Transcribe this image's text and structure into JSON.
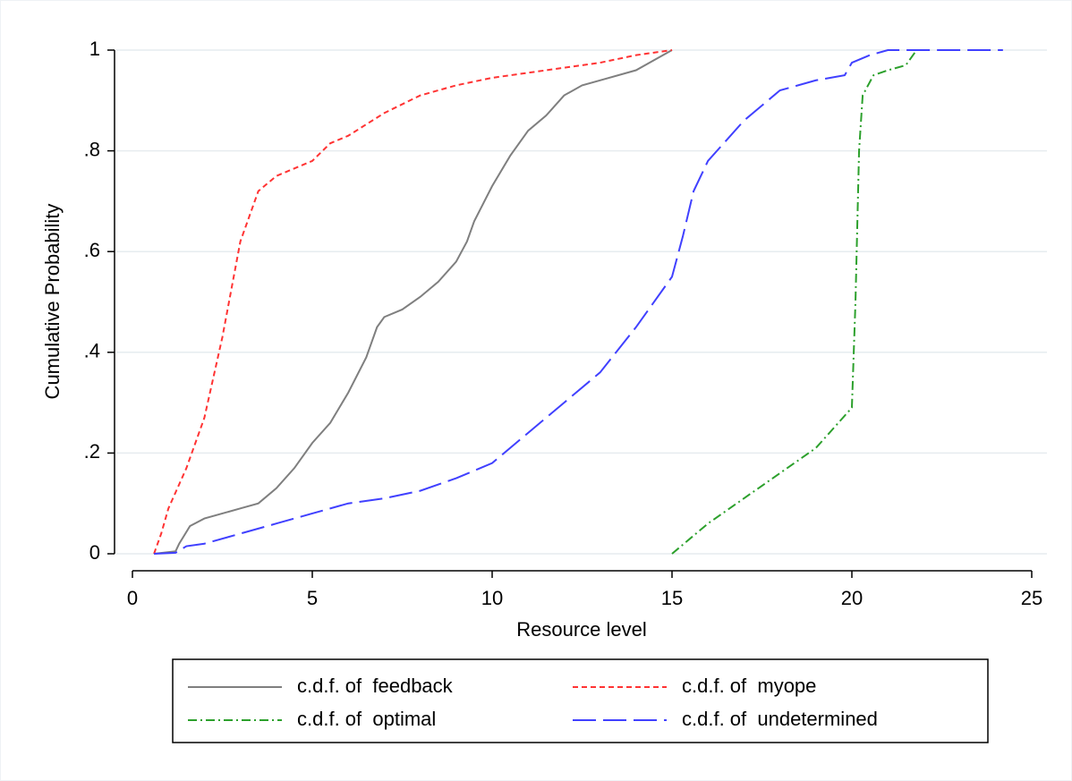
{
  "chart_data": {
    "type": "line",
    "x_label": "Resource level",
    "y_label": "Cumulative Probability",
    "xlim": [
      0,
      25
    ],
    "ylim": [
      0,
      1
    ],
    "xticks": [
      0,
      5,
      10,
      15,
      20,
      25
    ],
    "yticks": [
      0,
      {
        "value": 0.2,
        "label": ".2"
      },
      {
        "value": 0.4,
        "label": ".4"
      },
      {
        "value": 0.6,
        "label": ".6"
      },
      {
        "value": 0.8,
        "label": ".8"
      },
      1
    ],
    "grid": true,
    "legend": "bottom",
    "series": [
      {
        "name": "c.d.f. of  feedback",
        "color": "#7f7f7f",
        "dash": "solid",
        "x": [
          0.6,
          1.2,
          1.3,
          1.6,
          2,
          2.5,
          3,
          3.5,
          4,
          4.5,
          5,
          5.5,
          6,
          6.5,
          6.8,
          7,
          7.5,
          8,
          8.5,
          9,
          9.3,
          9.5,
          10,
          10.5,
          11,
          11.5,
          12,
          12.5,
          13,
          14,
          14.5,
          15
        ],
        "values": [
          0,
          0.005,
          0.02,
          0.055,
          0.07,
          0.08,
          0.09,
          0.1,
          0.13,
          0.17,
          0.22,
          0.26,
          0.32,
          0.39,
          0.45,
          0.47,
          0.485,
          0.51,
          0.54,
          0.58,
          0.62,
          0.66,
          0.73,
          0.79,
          0.84,
          0.87,
          0.91,
          0.93,
          0.94,
          0.96,
          0.98,
          1
        ]
      },
      {
        "name": "c.d.f. of  myope",
        "color": "#ff3333",
        "dash": "short",
        "x": [
          0.6,
          0.8,
          1,
          1.5,
          2,
          2.5,
          3,
          3.5,
          4,
          5,
          5.5,
          6,
          7,
          8,
          9,
          10,
          11,
          12,
          13,
          14,
          15
        ],
        "values": [
          0,
          0.04,
          0.09,
          0.17,
          0.27,
          0.43,
          0.62,
          0.72,
          0.75,
          0.78,
          0.815,
          0.83,
          0.875,
          0.91,
          0.93,
          0.945,
          0.955,
          0.965,
          0.975,
          0.99,
          1
        ]
      },
      {
        "name": "c.d.f. of  optimal",
        "color": "#2ca02c",
        "dash": "dashdot",
        "x": [
          15,
          16,
          17,
          18,
          19,
          19.5,
          20,
          20.1,
          20.2,
          20.3,
          20.6,
          21,
          21.5,
          21.8,
          22
        ],
        "values": [
          0,
          0.06,
          0.11,
          0.16,
          0.21,
          0.25,
          0.29,
          0.5,
          0.8,
          0.91,
          0.95,
          0.96,
          0.97,
          1,
          1
        ]
      },
      {
        "name": "c.d.f. of  undetermined",
        "color": "#4040ff",
        "dash": "long",
        "x": [
          0.6,
          1.2,
          1.5,
          2,
          3,
          4,
          5,
          6,
          7,
          8,
          9,
          10,
          11,
          12,
          13,
          14,
          15,
          15.3,
          15.6,
          16,
          17,
          18,
          19,
          19.8,
          20,
          20.5,
          21,
          24.2
        ],
        "values": [
          0,
          0.002,
          0.015,
          0.02,
          0.04,
          0.06,
          0.08,
          0.1,
          0.11,
          0.125,
          0.15,
          0.18,
          0.24,
          0.3,
          0.36,
          0.45,
          0.55,
          0.63,
          0.72,
          0.78,
          0.86,
          0.92,
          0.94,
          0.95,
          0.975,
          0.99,
          1,
          1
        ]
      }
    ]
  }
}
